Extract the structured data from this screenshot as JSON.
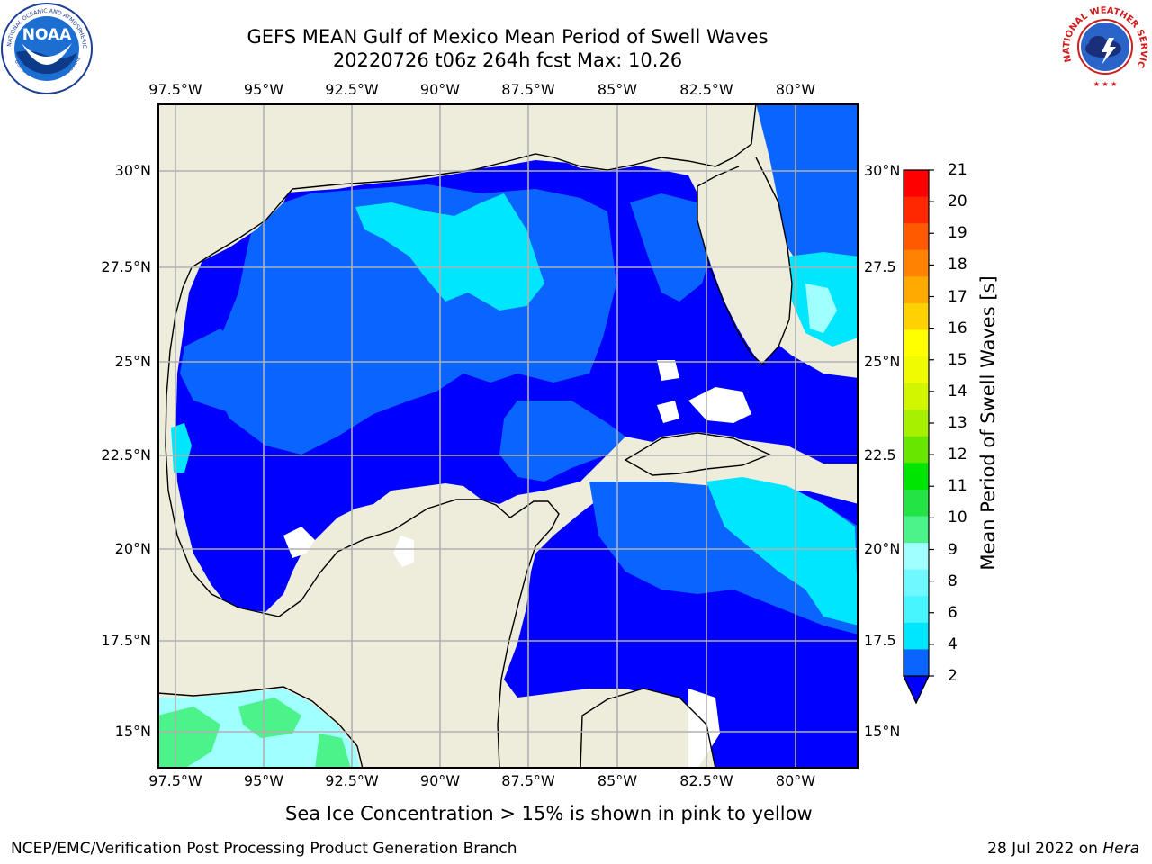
{
  "header": {
    "title_line1": "GEFS MEAN Gulf of Mexico Mean Period of Swell Waves",
    "title_line2": "20220726 t06z 264h fcst   Max: 10.26"
  },
  "logos": {
    "left": {
      "name": "NOAA",
      "ring_text": "NATIONAL OCEANIC AND ATMOSPHERIC ADMINISTRATION",
      "bottom_text": "U.S. DEPARTMENT OF COMMERCE",
      "icon": "noaa-logo"
    },
    "right": {
      "ring_text": "NATIONAL WEATHER SERVICE",
      "icon": "nws-logo"
    }
  },
  "map": {
    "lon_ticks": [
      "97.5°W",
      "95°W",
      "92.5°W",
      "90°W",
      "87.5°W",
      "85°W",
      "82.5°W",
      "80°W"
    ],
    "lat_ticks_left": [
      "30°N",
      "27.5°N",
      "25°N",
      "22.5°N",
      "20°N",
      "17.5°N",
      "15°N"
    ],
    "lat_ticks_right": [
      "30°N",
      "27.5",
      "25°N",
      "22.5",
      "20°N",
      "17.5",
      "15°N"
    ],
    "land_color": "#eeeddc",
    "grid_color": "#b0b0b0"
  },
  "colorbar": {
    "label": "Mean Period of Swell Waves [s]",
    "ticks": [
      "2",
      "4",
      "6",
      "8",
      "9",
      "10",
      "11",
      "12",
      "13",
      "14",
      "15",
      "16",
      "17",
      "18",
      "19",
      "20",
      "21"
    ],
    "colors": [
      "#0a64ff",
      "#00e6ff",
      "#46f5ff",
      "#6ff8ff",
      "#a0ffff",
      "#4cf28a",
      "#24e344",
      "#00e600",
      "#68e600",
      "#a6f000",
      "#d2f500",
      "#f0fa00",
      "#ffff00",
      "#ffd200",
      "#ffaa00",
      "#ff8200",
      "#ff5a00",
      "#ff2800",
      "#ff0000"
    ],
    "extend_color": "#0000ff"
  },
  "annotation": "Sea Ice Concentration > 15% is shown in pink to yellow",
  "footer": {
    "left": "NCEP/EMC/Verification Post Processing Product Generation Branch",
    "date": "28 Jul 2022 on ",
    "machine": "Hera"
  }
}
